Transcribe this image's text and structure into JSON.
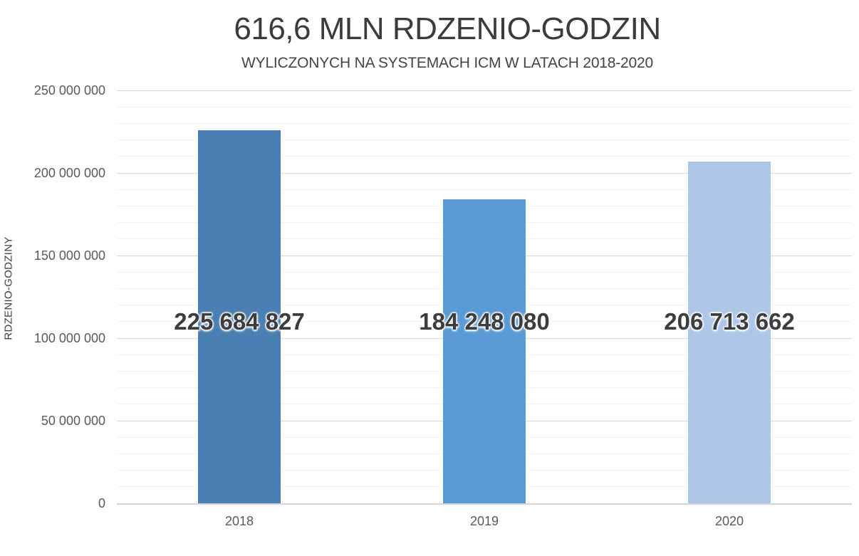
{
  "chart_data": {
    "type": "bar",
    "title": "616,6 MLN RDZENIO-GODZIN",
    "subtitle": "WYLICZONYCH NA SYSTEMACH ICM W LATACH 2018-2020",
    "ylabel": "RDZENIO-GODZINY",
    "xlabel": "",
    "categories": [
      "2018",
      "2019",
      "2020"
    ],
    "values": [
      225684827,
      184248080,
      206713662
    ],
    "data_labels": [
      "225 684 827",
      "184 248 080",
      "206 713 662"
    ],
    "bar_colors": [
      "#4a7fb3",
      "#5b9bd5",
      "#aec7e8"
    ],
    "ylim": [
      0,
      250000000
    ],
    "yticks": [
      {
        "value": 0,
        "label": "0"
      },
      {
        "value": 50000000,
        "label": "50 000 000"
      },
      {
        "value": 100000000,
        "label": "100 000 000"
      },
      {
        "value": 150000000,
        "label": "150 000 000"
      },
      {
        "value": 200000000,
        "label": "200 000 000"
      },
      {
        "value": 250000000,
        "label": "250 000 000"
      }
    ],
    "major_gridline_interval": 50000000,
    "minor_gridline_interval": 10000000,
    "grid": true,
    "legend": false,
    "colors": {
      "background": "#ffffff",
      "title_text": "#3b3b3b",
      "subtitle_text": "#444444",
      "tick_text": "#595959",
      "data_label_text": "#3d3d3d",
      "major_gridline": "#d9d9d9",
      "minor_gridline": "#f2f2f2",
      "axis_line": "#d5d5d5"
    }
  }
}
